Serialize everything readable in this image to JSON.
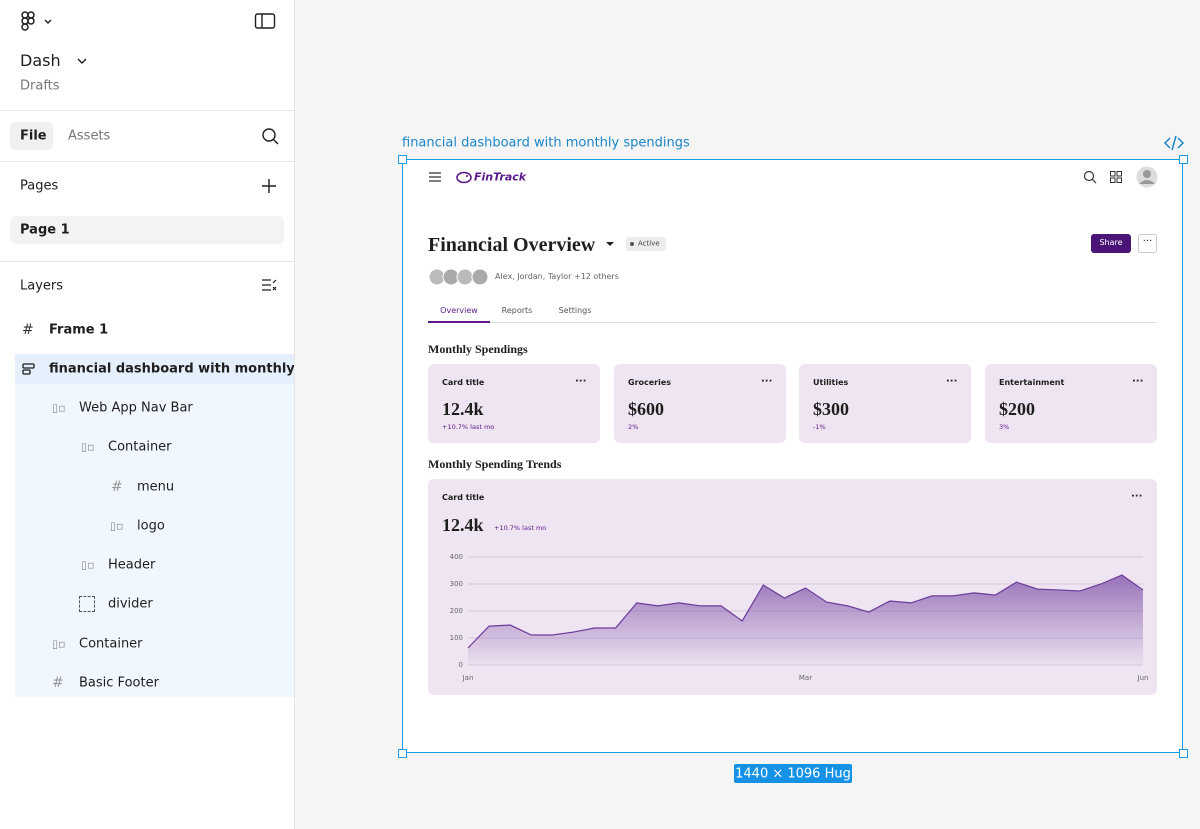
{
  "sidebar": {
    "file_name": "Dash",
    "location": "Drafts",
    "tabs": [
      "File",
      "Assets"
    ],
    "pages_heading": "Pages",
    "pages": [
      "Page 1"
    ],
    "layers_heading": "Layers",
    "layers": [
      "Frame 1",
      "financial dashboard with monthly spendings",
      "Web App Nav Bar",
      "Container",
      "menu",
      "logo",
      "Header",
      "divider",
      "Container",
      "Basic Footer"
    ]
  },
  "canvas": {
    "frame_label": "financial dashboard with monthly spendings",
    "size_label": "1440 × 1096 Hug"
  },
  "dashboard": {
    "brand": "FinTrack",
    "title": "Financial Overview",
    "status": "Active",
    "collaborators": "Alex, Jordan, Taylor +12 others",
    "share": "Share",
    "tabs": [
      "Overview",
      "Reports",
      "Settings"
    ],
    "spendings_heading": "Monthly Spendings",
    "cards": [
      {
        "title": "Card title",
        "value": "12.4k",
        "change": "+10.7% last mo"
      },
      {
        "title": "Groceries",
        "value": "$600",
        "change": "2%"
      },
      {
        "title": "Utilities",
        "value": "$300",
        "change": "-1%"
      },
      {
        "title": "Entertainment",
        "value": "$200",
        "change": "3%"
      }
    ],
    "trends_heading": "Monthly Spending Trends",
    "trend_chart": {
      "type": "area",
      "title": "Card title",
      "value": "12.4k",
      "change": "+10.7% last mo",
      "categories": [
        "Jan",
        null,
        null,
        null,
        null,
        null,
        null,
        null,
        null,
        null,
        null,
        null,
        null,
        null,
        null,
        null,
        "Mar",
        null,
        null,
        null,
        null,
        null,
        null,
        null,
        null,
        null,
        null,
        null,
        null,
        null,
        null,
        null,
        "Jun"
      ],
      "values": [
        63,
        144,
        148,
        111,
        111,
        122,
        137,
        137,
        230,
        219,
        230,
        219,
        219,
        163,
        296,
        248,
        285,
        233,
        219,
        196,
        237,
        230,
        256,
        256,
        267,
        259,
        307,
        281,
        278,
        274,
        300,
        333,
        278
      ],
      "color": "#6b3d9a",
      "ylim": [
        0,
        400
      ],
      "yticks": [
        0,
        100,
        200,
        300,
        400
      ],
      "grid": true
    }
  }
}
